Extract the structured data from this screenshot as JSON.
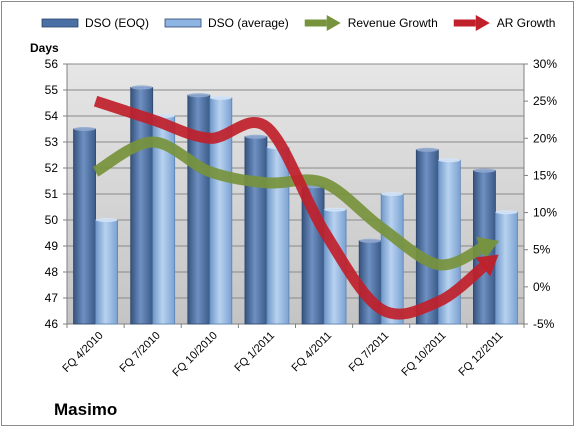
{
  "chart_data": {
    "type": "bar+line",
    "title": "Masimo",
    "ylabel_left": "Days",
    "ylabel_right": "",
    "categories": [
      "FQ 4/2010",
      "FQ 7/2010",
      "FQ 10/2010",
      "FQ 1/2011",
      "FQ 4/2011",
      "FQ 7/2011",
      "FQ 10/2011",
      "FQ 12/2011"
    ],
    "left_axis": {
      "min": 46,
      "max": 56,
      "step": 1
    },
    "right_axis": {
      "min": -5,
      "max": 30,
      "step": 5,
      "unit": "%"
    },
    "legend_position": "top",
    "series": [
      {
        "name": "DSO (EOQ)",
        "kind": "bar",
        "axis": "left",
        "color": "#4a6fa5",
        "values": [
          53.5,
          55.1,
          54.8,
          53.2,
          51.3,
          49.2,
          52.7,
          51.9
        ]
      },
      {
        "name": "DSO (average)",
        "kind": "bar",
        "axis": "left",
        "color": "#8db4e2",
        "values": [
          50.0,
          54.0,
          54.7,
          52.8,
          50.4,
          51.0,
          52.3,
          50.3
        ]
      },
      {
        "name": "Revenue Growth",
        "kind": "arrow-line",
        "axis": "right",
        "color": "#77933c",
        "values": [
          15.5,
          19.5,
          15.5,
          14.0,
          14.0,
          8.0,
          3.0,
          6.0
        ]
      },
      {
        "name": "AR Growth",
        "kind": "arrow-line",
        "axis": "right",
        "color": "#c0202a",
        "values": [
          25.0,
          22.5,
          20.0,
          21.5,
          7.5,
          -3.0,
          -2.0,
          4.0
        ]
      }
    ],
    "grid": true
  }
}
